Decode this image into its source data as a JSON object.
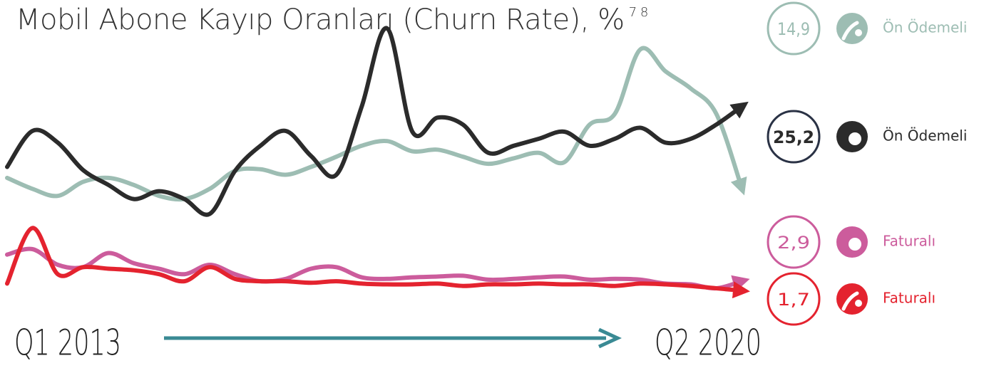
{
  "chart_data": {
    "type": "line",
    "title": "Mobil Abone Kayıp Oranları (Churn Rate), %",
    "title_superscript": "7 8",
    "categories": [
      "Q1 2013",
      null,
      null,
      null,
      null,
      null,
      null,
      null,
      null,
      null,
      null,
      null,
      null,
      null,
      null,
      null,
      null,
      null,
      null,
      null,
      null,
      null,
      null,
      null,
      null,
      null,
      null,
      null,
      null,
      "Q2 2020"
    ],
    "ylim": [
      0,
      38
    ],
    "series": [
      {
        "name": "Ön Ödemeli",
        "color": "#9dbdb3",
        "values": [
          16.1,
          14.7,
          13.8,
          15.6,
          16.1,
          15.2,
          13.8,
          13.4,
          14.7,
          17.0,
          17.2,
          16.5,
          17.5,
          18.8,
          20.2,
          20.8,
          19.5,
          19.7,
          18.8,
          17.9,
          18.6,
          19.3,
          18.1,
          22.9,
          24.3,
          32.5,
          29.7,
          27.5,
          24.3,
          14.9
        ],
        "value_labels": [
          null,
          null,
          null,
          null,
          null,
          null,
          null,
          null,
          null,
          null,
          null,
          null,
          null,
          null,
          null,
          null,
          null,
          null,
          null,
          null,
          null,
          null,
          null,
          null,
          null,
          null,
          null,
          null,
          null,
          "14,9"
        ]
      },
      {
        "name": "Ön Ödemeli",
        "color": "#2b2b2b",
        "values": [
          17.5,
          22.1,
          20.6,
          17.1,
          15.2,
          13.4,
          14.4,
          13.4,
          11.5,
          17.0,
          20.2,
          22.1,
          18.9,
          16.5,
          25.2,
          35.2,
          22.0,
          23.8,
          22.9,
          19.3,
          20.2,
          21.1,
          22.0,
          20.2,
          21.1,
          22.5,
          20.6,
          21.1,
          22.9,
          25.2
        ],
        "value_labels": [
          null,
          null,
          null,
          null,
          null,
          null,
          null,
          null,
          null,
          null,
          null,
          null,
          null,
          null,
          null,
          null,
          null,
          null,
          null,
          null,
          null,
          null,
          null,
          null,
          null,
          null,
          null,
          null,
          null,
          "25,2"
        ]
      },
      {
        "name": "Faturalı",
        "color": "#cc5c9c",
        "values": [
          6.3,
          7.0,
          5.0,
          4.7,
          6.5,
          5.2,
          4.5,
          3.8,
          5.0,
          3.8,
          2.9,
          3.2,
          4.5,
          4.7,
          3.4,
          3.2,
          3.4,
          3.5,
          3.6,
          3.1,
          3.2,
          3.4,
          3.5,
          3.1,
          3.2,
          3.1,
          2.6,
          2.5,
          2.0,
          2.9
        ],
        "value_labels": [
          null,
          null,
          null,
          null,
          null,
          null,
          null,
          null,
          null,
          null,
          null,
          null,
          null,
          null,
          null,
          null,
          null,
          null,
          null,
          null,
          null,
          null,
          null,
          null,
          null,
          null,
          null,
          null,
          null,
          "2,9"
        ]
      },
      {
        "name": "Faturalı",
        "color": "#e4232f",
        "values": [
          2.6,
          9.7,
          3.8,
          4.7,
          4.5,
          4.3,
          3.8,
          2.9,
          4.7,
          3.2,
          2.9,
          2.9,
          2.7,
          2.9,
          2.6,
          2.5,
          2.5,
          2.6,
          2.3,
          2.5,
          2.5,
          2.6,
          2.5,
          2.5,
          2.3,
          2.6,
          2.5,
          2.3,
          2.0,
          1.7
        ],
        "value_labels": [
          null,
          null,
          null,
          null,
          null,
          null,
          null,
          null,
          null,
          null,
          null,
          null,
          null,
          null,
          null,
          null,
          null,
          null,
          null,
          null,
          null,
          null,
          null,
          null,
          null,
          null,
          null,
          null,
          null,
          "1,7"
        ]
      }
    ]
  }
}
